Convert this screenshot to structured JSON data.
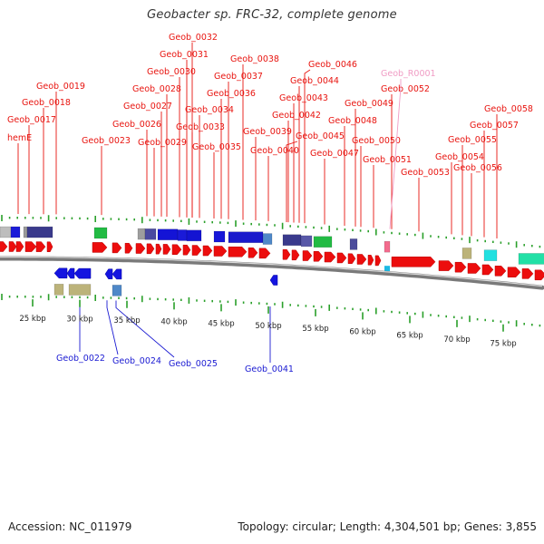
{
  "title": "Geobacter sp. FRC-32, complete genome",
  "footer": {
    "accession": "Accession: NC_011979",
    "topology": "Topology: circular; Length: 4,304,501 bp; Genes: 3,855"
  },
  "colors": {
    "forward_label": "#e8140f",
    "reverse_label": "#1a1ad2",
    "rna_label": "#f09cc4",
    "forward_gene": "#ec0d0d",
    "reverse_gene": "#1414e0",
    "backbone": "#7a7a7a",
    "tick": "#2aa02a"
  },
  "scale": {
    "unit": "kbp",
    "ticks": [
      "25 kbp",
      "30 kbp",
      "35 kbp",
      "40 kbp",
      "45 kbp",
      "50 kbp",
      "55 kbp",
      "60 kbp",
      "65 kbp",
      "70 kbp",
      "75 kbp"
    ]
  },
  "forward_labels": [
    "Geob_0032",
    "Geob_0031",
    "Geob_0030",
    "Geob_0038",
    "Geob_0046",
    "Geob_0019",
    "Geob_0037",
    "Geob_0044",
    "Geob_0028",
    "Geob_0036",
    "Geob_0052",
    "Geob_0018",
    "Geob_0043",
    "Geob_0027",
    "Geob_0034",
    "Geob_0049",
    "Geob_0058",
    "Geob_0017",
    "Geob_0026",
    "Geob_0042",
    "Geob_0048",
    "Geob_0057",
    "Geob_0033",
    "Geob_0039",
    "hemE",
    "Geob_0045",
    "Geob_0023",
    "Geob_0029",
    "Geob_0050",
    "Geob_0055",
    "Geob_0035",
    "Geob_0040",
    "Geob_0047",
    "Geob_0054",
    "Geob_0051",
    "Geob_0056",
    "Geob_0053"
  ],
  "rna_labels": [
    "Geob_R0001"
  ],
  "reverse_labels": [
    "Geob_0022",
    "Geob_0024",
    "Geob_0025",
    "Geob_0041"
  ]
}
